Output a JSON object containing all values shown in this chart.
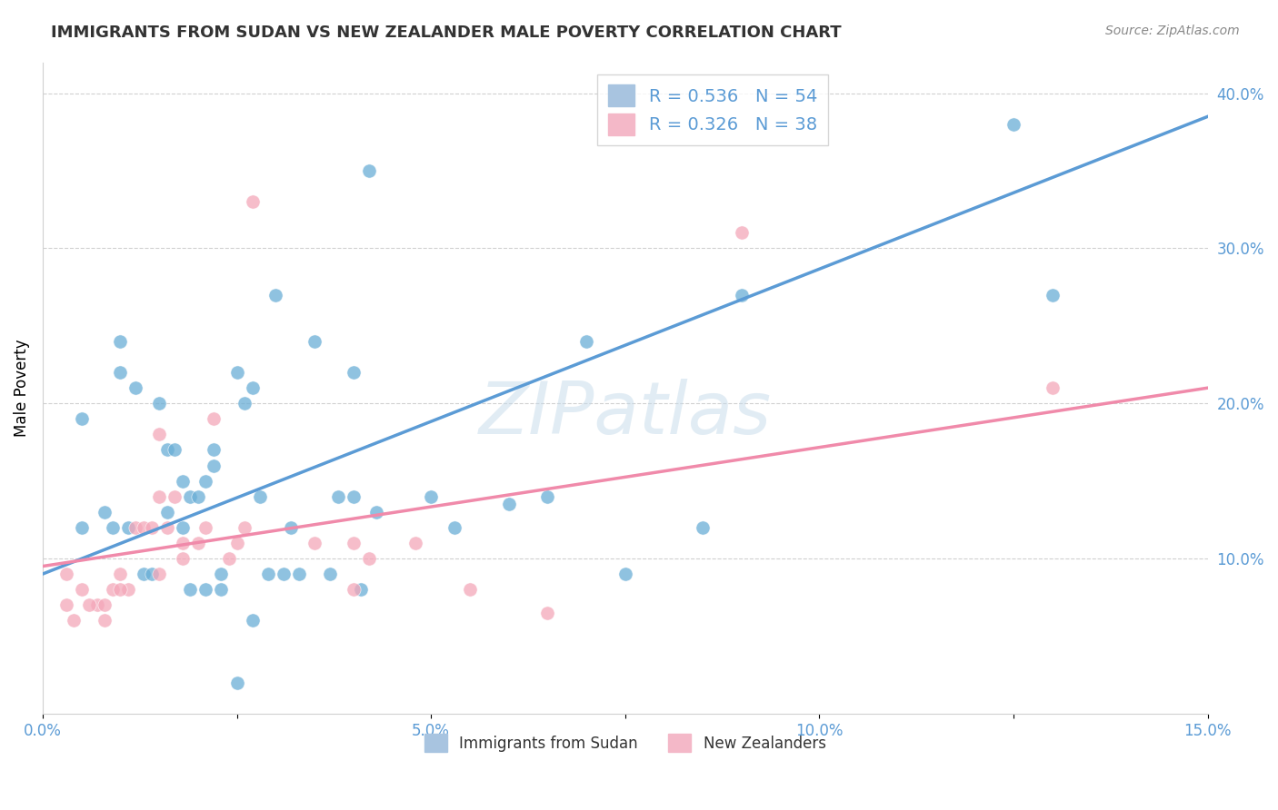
{
  "title": "IMMIGRANTS FROM SUDAN VS NEW ZEALANDER MALE POVERTY CORRELATION CHART",
  "source": "Source: ZipAtlas.com",
  "ylabel_label": "Male Poverty",
  "xlim": [
    0.0,
    0.15
  ],
  "ylim": [
    0.0,
    0.42
  ],
  "blue_color": "#6aaed6",
  "pink_color": "#f4a7b9",
  "blue_line_color": "#5b9bd5",
  "pink_line_color": "#f08aaa",
  "watermark": "ZIPatlas",
  "blue_scatter_x": [
    0.005,
    0.01,
    0.01,
    0.012,
    0.015,
    0.016,
    0.017,
    0.018,
    0.019,
    0.02,
    0.021,
    0.022,
    0.022,
    0.025,
    0.026,
    0.027,
    0.028,
    0.03,
    0.032,
    0.035,
    0.038,
    0.04,
    0.04,
    0.042,
    0.043,
    0.05,
    0.053,
    0.06,
    0.065,
    0.07,
    0.075,
    0.085,
    0.09,
    0.005,
    0.008,
    0.009,
    0.011,
    0.013,
    0.014,
    0.016,
    0.018,
    0.019,
    0.021,
    0.023,
    0.023,
    0.025,
    0.027,
    0.029,
    0.031,
    0.033,
    0.037,
    0.041,
    0.125,
    0.13
  ],
  "blue_scatter_y": [
    0.19,
    0.24,
    0.22,
    0.21,
    0.2,
    0.17,
    0.17,
    0.15,
    0.14,
    0.14,
    0.15,
    0.16,
    0.17,
    0.22,
    0.2,
    0.21,
    0.14,
    0.27,
    0.12,
    0.24,
    0.14,
    0.22,
    0.14,
    0.35,
    0.13,
    0.14,
    0.12,
    0.135,
    0.14,
    0.24,
    0.09,
    0.12,
    0.27,
    0.12,
    0.13,
    0.12,
    0.12,
    0.09,
    0.09,
    0.13,
    0.12,
    0.08,
    0.08,
    0.08,
    0.09,
    0.02,
    0.06,
    0.09,
    0.09,
    0.09,
    0.09,
    0.08,
    0.38,
    0.27
  ],
  "pink_scatter_x": [
    0.003,
    0.005,
    0.007,
    0.008,
    0.009,
    0.01,
    0.011,
    0.012,
    0.013,
    0.014,
    0.015,
    0.015,
    0.016,
    0.017,
    0.018,
    0.02,
    0.021,
    0.022,
    0.024,
    0.025,
    0.026,
    0.027,
    0.035,
    0.04,
    0.04,
    0.042,
    0.048,
    0.055,
    0.065,
    0.09,
    0.003,
    0.004,
    0.006,
    0.008,
    0.01,
    0.015,
    0.018,
    0.13
  ],
  "pink_scatter_y": [
    0.09,
    0.08,
    0.07,
    0.06,
    0.08,
    0.09,
    0.08,
    0.12,
    0.12,
    0.12,
    0.14,
    0.18,
    0.12,
    0.14,
    0.11,
    0.11,
    0.12,
    0.19,
    0.1,
    0.11,
    0.12,
    0.33,
    0.11,
    0.11,
    0.08,
    0.1,
    0.11,
    0.08,
    0.065,
    0.31,
    0.07,
    0.06,
    0.07,
    0.07,
    0.08,
    0.09,
    0.1,
    0.21
  ],
  "blue_line_x": [
    0.0,
    0.15
  ],
  "blue_line_y": [
    0.09,
    0.385
  ],
  "pink_line_x": [
    0.0,
    0.15
  ],
  "pink_line_y": [
    0.095,
    0.21
  ],
  "legend1_label": "R = 0.536   N = 54",
  "legend2_label": "R = 0.326   N = 38",
  "legend1_color": "#a8c4e0",
  "legend2_color": "#f4b8c8",
  "bottom_legend1": "Immigrants from Sudan",
  "bottom_legend2": "New Zealanders",
  "tick_color": "#5b9bd5",
  "title_color": "#333333",
  "source_color": "#888888",
  "grid_color": "#d0d0d0",
  "yticks": [
    0.1,
    0.2,
    0.3,
    0.4
  ],
  "ytick_labels": [
    "10.0%",
    "20.0%",
    "30.0%",
    "40.0%"
  ],
  "xtick_vals": [
    0.0,
    0.025,
    0.05,
    0.075,
    0.1,
    0.125,
    0.15
  ],
  "xtick_labels": [
    "0.0%",
    "",
    "5.0%",
    "",
    "10.0%",
    "",
    "15.0%"
  ]
}
